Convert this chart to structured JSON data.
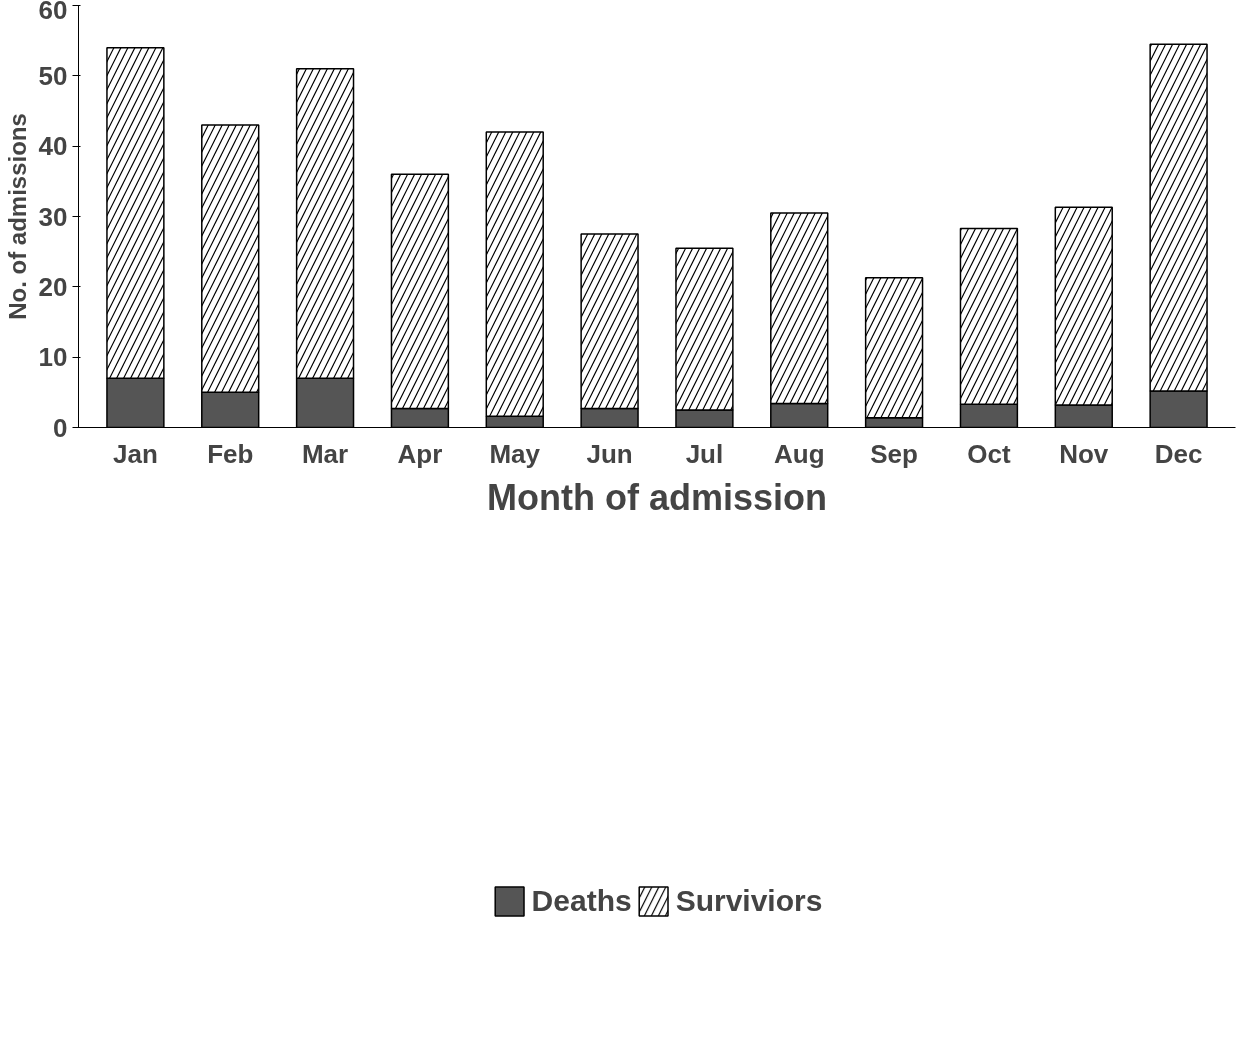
{
  "chart_data": {
    "type": "bar",
    "stacked": true,
    "xlabel": "Month of admission",
    "ylabel": "No. of admissions",
    "categories": [
      "Jan",
      "Feb",
      "Mar",
      "Apr",
      "May",
      "Jun",
      "Jul",
      "Aug",
      "Sep",
      "Oct",
      "Nov",
      "Dec"
    ],
    "series": [
      {
        "name": "Deaths",
        "color": "#555555",
        "values": [
          7,
          5,
          7,
          2.7,
          1.6,
          2.7,
          2.5,
          3.4,
          1.4,
          3.3,
          3.2,
          5.2
        ]
      },
      {
        "name": "Surviviors",
        "color": "#ffffff",
        "values": [
          47,
          38,
          44,
          33.3,
          40.4,
          24.8,
          23,
          27.1,
          19.9,
          25,
          28.1,
          49.3
        ]
      }
    ],
    "ylim": [
      0,
      60
    ],
    "yticks": [
      0,
      10,
      20,
      30,
      40,
      50,
      60
    ],
    "grid": false,
    "legend": "bottom"
  }
}
